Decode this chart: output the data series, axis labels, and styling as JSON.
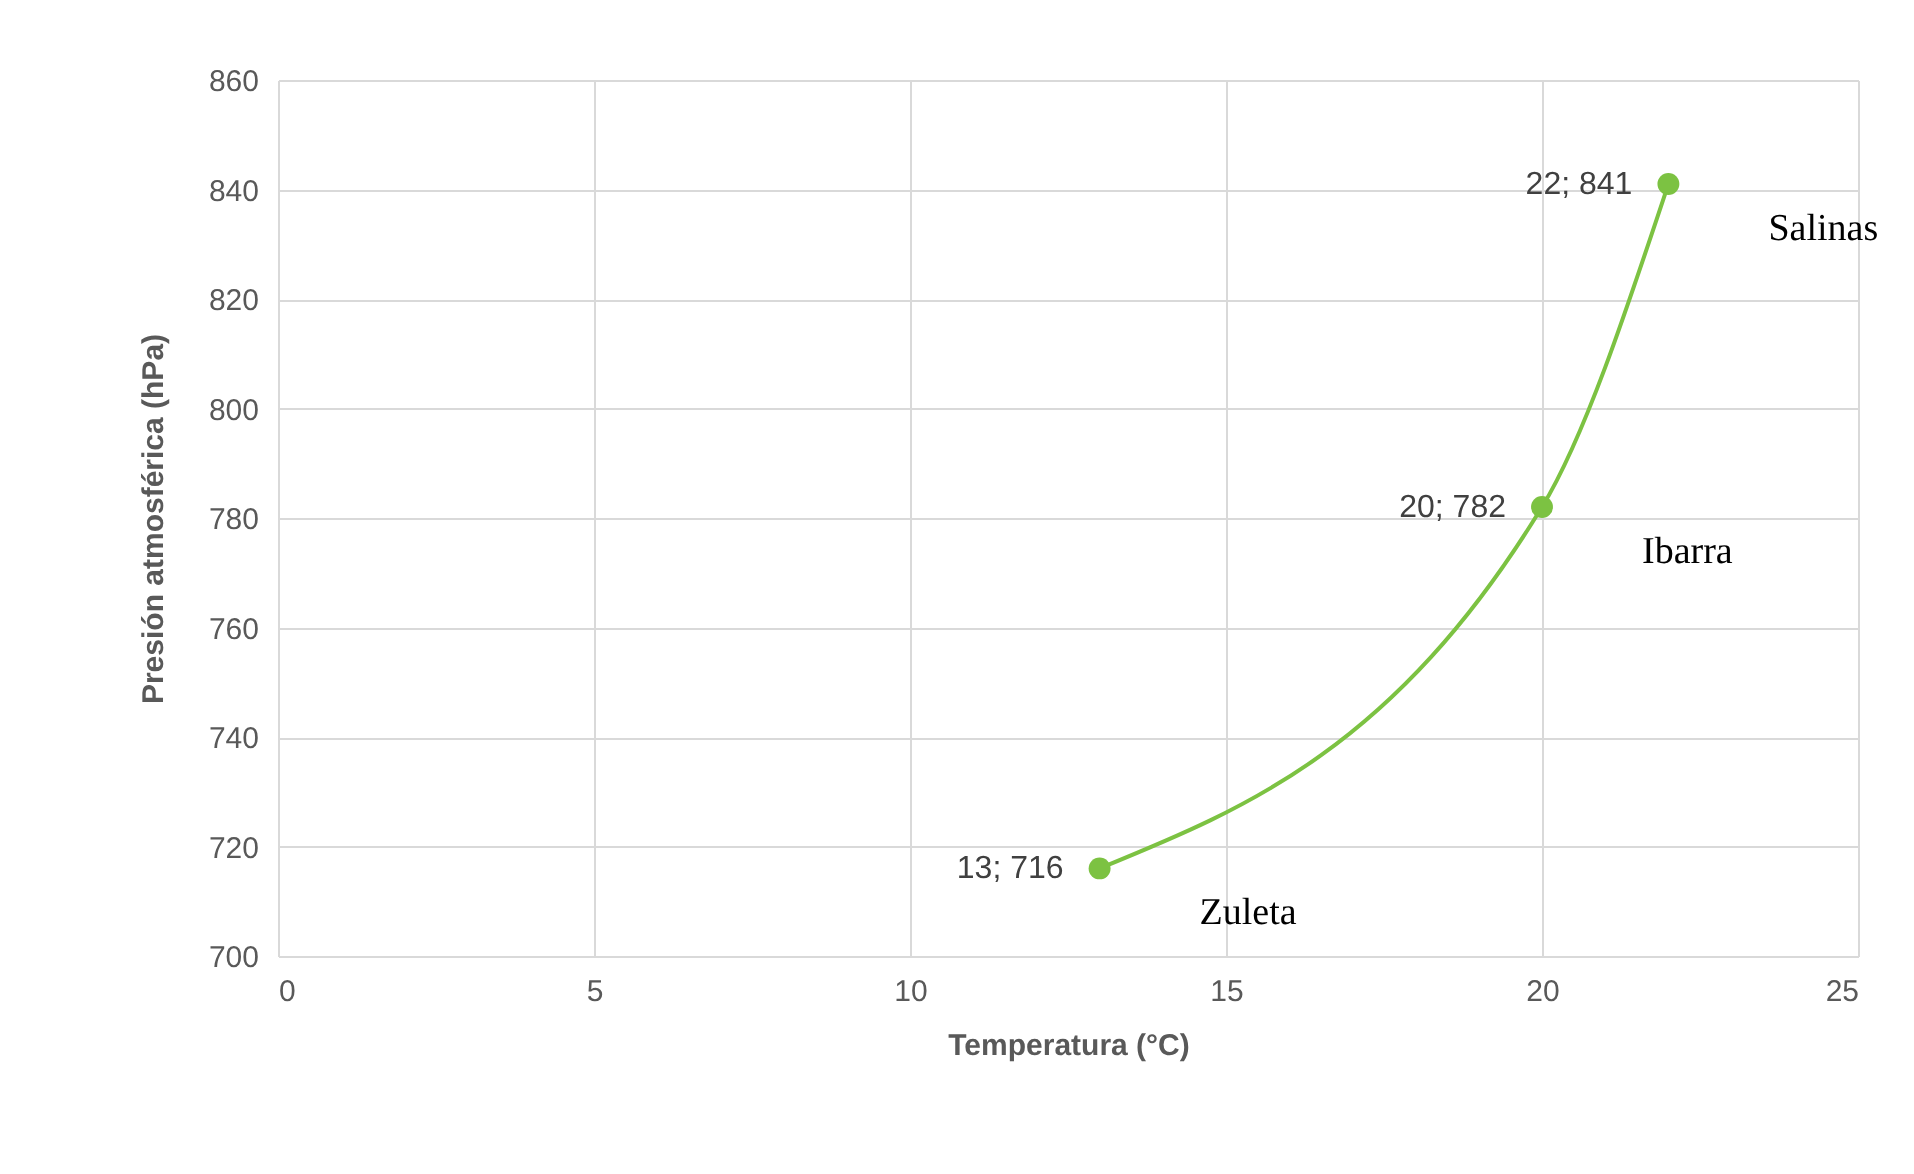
{
  "chart_data": {
    "type": "line",
    "xlabel": "Temperatura (°C)",
    "ylabel": "Presión atmosférica (hPa)",
    "x": [
      13,
      20,
      22
    ],
    "series": [
      {
        "color": "#7cc242",
        "values": [
          716,
          782,
          841
        ],
        "value_labels": [
          "13; 716",
          "20; 782",
          "22; 841"
        ]
      }
    ],
    "xlim": [
      0,
      25
    ],
    "xticks": [
      0,
      5,
      10,
      15,
      20,
      25
    ],
    "ylim": [
      700,
      860
    ],
    "yticks": [
      700,
      720,
      740,
      760,
      780,
      800,
      820,
      840,
      860
    ],
    "grid": true,
    "marker": "circle",
    "annotations": [
      {
        "text": "Zuleta",
        "x": 13,
        "y": 716
      },
      {
        "text": "Ibarra",
        "x": 20,
        "y": 782
      },
      {
        "text": "Salinas",
        "x": 22,
        "y": 841
      }
    ]
  }
}
